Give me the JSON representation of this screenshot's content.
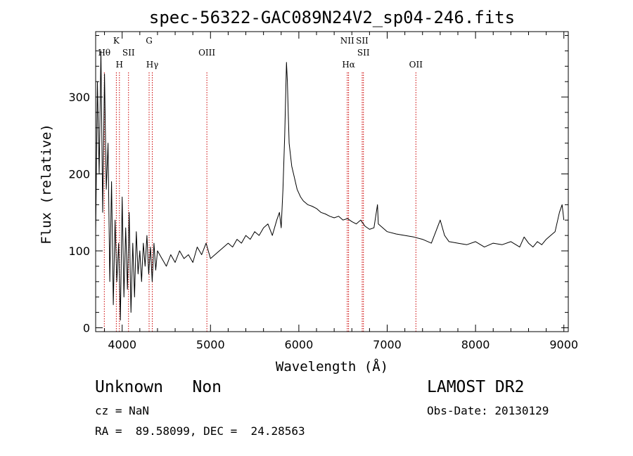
{
  "chart_data": {
    "type": "line",
    "title": "spec-56322-GAC089N24V2_sp04-246.fits",
    "xlabel": "Wavelength (Å)",
    "ylabel": "Flux (relative)",
    "xlim": [
      3700,
      9050
    ],
    "ylim": [
      -5,
      385
    ],
    "xticks": [
      4000,
      5000,
      6000,
      7000,
      8000,
      9000
    ],
    "yticks": [
      0,
      100,
      200,
      300
    ],
    "grid": false,
    "line_color": "#000000",
    "marker_color": "#cc0000",
    "spectral_lines": [
      {
        "name": "Hθ",
        "wavelength": 3798,
        "row": 2
      },
      {
        "name": "K",
        "wavelength": 3934,
        "row": 1
      },
      {
        "name": "H",
        "wavelength": 3969,
        "row": 3
      },
      {
        "name": "SII",
        "wavelength": 4072,
        "row": 2
      },
      {
        "name": "G",
        "wavelength": 4305,
        "row": 1
      },
      {
        "name": "Hγ",
        "wavelength": 4341,
        "row": 3
      },
      {
        "name": "OIII",
        "wavelength": 4959,
        "row": 2
      },
      {
        "name": "NII",
        "wavelength": 6548,
        "row": 1
      },
      {
        "name": "Hα",
        "wavelength": 6563,
        "row": 3
      },
      {
        "name": "SII",
        "wavelength": 6717,
        "row": 1
      },
      {
        "name": "SII",
        "wavelength": 6731,
        "row": 2
      },
      {
        "name": "OII",
        "wavelength": 7325,
        "row": 3
      }
    ],
    "series": [
      {
        "x": [
          3700,
          3720,
          3740,
          3760,
          3780,
          3800,
          3820,
          3840,
          3860,
          3880,
          3900,
          3920,
          3940,
          3960,
          3980,
          4000,
          4020,
          4040,
          4060,
          4080,
          4100,
          4120,
          4140,
          4160,
          4180,
          4200,
          4220,
          4240,
          4260,
          4280,
          4300,
          4320,
          4340,
          4360,
          4380,
          4400,
          4450,
          4500,
          4550,
          4600,
          4650,
          4700,
          4750,
          4800,
          4850,
          4900,
          4950,
          5000,
          5050,
          5100,
          5150,
          5200,
          5250,
          5300,
          5350,
          5400,
          5450,
          5500,
          5550,
          5600,
          5650,
          5700,
          5750,
          5780,
          5800,
          5820,
          5840,
          5860,
          5870,
          5880,
          5890,
          5900,
          5920,
          5940,
          5960,
          5980,
          6000,
          6020,
          6050,
          6100,
          6150,
          6200,
          6250,
          6300,
          6350,
          6400,
          6450,
          6500,
          6550,
          6600,
          6650,
          6700,
          6750,
          6800,
          6850,
          6890,
          6900,
          6950,
          7000,
          7100,
          7200,
          7300,
          7400,
          7500,
          7550,
          7600,
          7620,
          7650,
          7700,
          7800,
          7900,
          8000,
          8100,
          8200,
          8300,
          8400,
          8500,
          8550,
          8600,
          8650,
          8700,
          8750,
          8800,
          8850,
          8900,
          8950,
          8980,
          9000
        ],
        "y": [
          120,
          320,
          200,
          360,
          150,
          330,
          180,
          240,
          60,
          190,
          30,
          140,
          60,
          110,
          10,
          170,
          40,
          130,
          50,
          150,
          20,
          110,
          40,
          125,
          70,
          100,
          60,
          110,
          80,
          120,
          70,
          105,
          60,
          110,
          75,
          100,
          90,
          80,
          95,
          85,
          100,
          90,
          95,
          85,
          105,
          95,
          110,
          90,
          95,
          100,
          105,
          110,
          105,
          115,
          110,
          120,
          115,
          125,
          120,
          130,
          135,
          120,
          140,
          150,
          130,
          180,
          250,
          345,
          320,
          280,
          240,
          230,
          210,
          200,
          190,
          180,
          175,
          170,
          165,
          160,
          158,
          155,
          150,
          148,
          145,
          143,
          145,
          140,
          142,
          138,
          135,
          140,
          132,
          128,
          130,
          160,
          135,
          130,
          125,
          122,
          120,
          118,
          115,
          110,
          125,
          140,
          132,
          120,
          112,
          110,
          108,
          112,
          105,
          110,
          108,
          112,
          105,
          118,
          110,
          105,
          112,
          108,
          115,
          120,
          125,
          150,
          160,
          140
        ]
      }
    ]
  },
  "info": {
    "class_line": "Unknown   Non",
    "survey": "LAMOST DR2",
    "cz_line": "cz = NaN",
    "obs_date": "Obs-Date: 20130129",
    "radec_line": "RA =  89.58099, DEC =  24.28563"
  }
}
